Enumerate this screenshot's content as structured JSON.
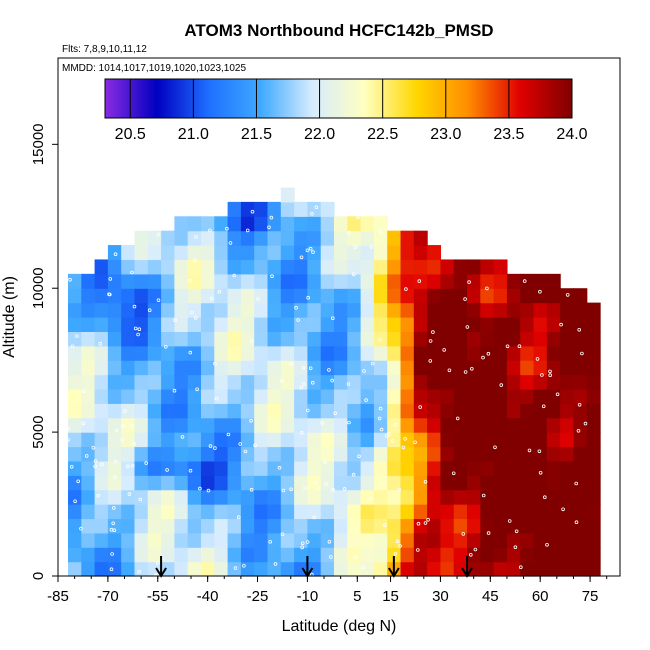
{
  "chart_data": {
    "type": "heatmap",
    "title": "ATOM3 Northbound HCFC142b_PMSD",
    "flights_label": "Flts: 7,8,9,10,11,12",
    "dates_label": "MMDD: 1014,1017,1019,1020,1023,1025",
    "xlabel": "Latitude (deg N)",
    "ylabel": "Altitude (m)",
    "xlim": [
      -85,
      84
    ],
    "ylim": [
      0,
      18000
    ],
    "x_ticks": [
      -85,
      -70,
      -55,
      -40,
      -25,
      -10,
      5,
      15,
      30,
      45,
      60,
      75
    ],
    "x_tick_labels": [
      "-85",
      "-70",
      "-55",
      "-40",
      "-25",
      "-10",
      "5",
      "15",
      "30",
      "45",
      "60",
      "75"
    ],
    "y_ticks": [
      0,
      5000,
      10000,
      15000
    ],
    "y_tick_labels": [
      "0",
      "5000",
      "10000",
      "15000"
    ],
    "colorbar": {
      "range": [
        20.3,
        24.0
      ],
      "ticks": [
        20.5,
        21.0,
        21.5,
        22.0,
        22.5,
        23.0,
        23.5,
        24.0
      ],
      "tick_labels": [
        "20.5",
        "21.0",
        "21.5",
        "22.0",
        "22.5",
        "23.0",
        "23.5",
        "24.0"
      ],
      "colors": [
        "#8a2be2",
        "#0000c0",
        "#1e6fff",
        "#3fa9ff",
        "#d6ecff",
        "#ffffc0",
        "#ffd700",
        "#ff8c00",
        "#e00000",
        "#800000"
      ]
    },
    "arrow_latitudes": [
      -54,
      -10,
      16,
      38
    ],
    "sampling": {
      "lat_min": -82,
      "lat_max": 78,
      "lat_step": 4,
      "alt_min": 0,
      "alt_max": 13500,
      "alt_step": 500,
      "top_profile": [
        [
          -82,
          10500
        ],
        [
          -72,
          10900
        ],
        [
          -62,
          11800
        ],
        [
          -50,
          12200
        ],
        [
          -38,
          12600
        ],
        [
          -25,
          13000
        ],
        [
          -15,
          13400
        ],
        [
          -5,
          12800
        ],
        [
          10,
          12500
        ],
        [
          22,
          11900
        ],
        [
          32,
          11200
        ],
        [
          45,
          10900
        ],
        [
          58,
          10500
        ],
        [
          70,
          10000
        ],
        [
          78,
          9000
        ]
      ]
    }
  }
}
